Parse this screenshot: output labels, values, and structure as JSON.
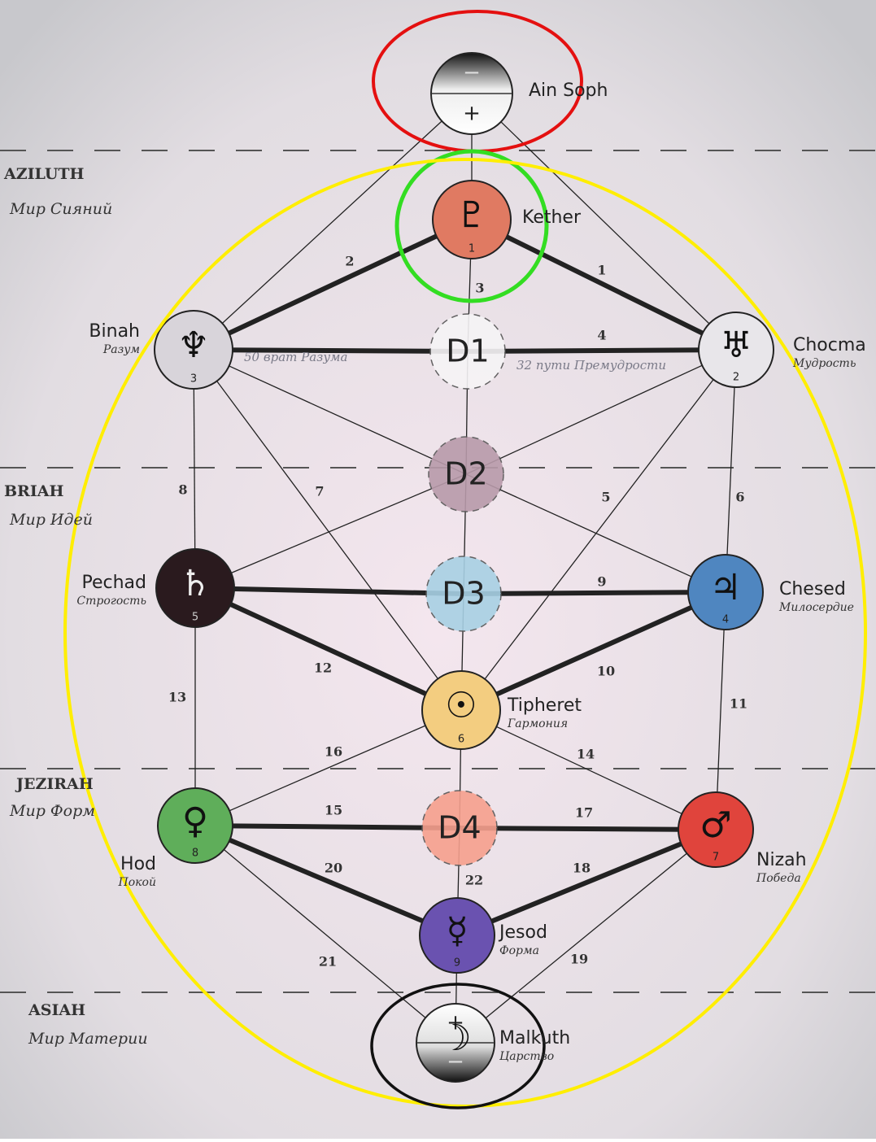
{
  "worlds": [
    {
      "name": "AZILUTH",
      "subtitle": "Мир Сияний"
    },
    {
      "name": "BRIAH",
      "subtitle": "Мир Идей"
    },
    {
      "name": "JEZIRAH",
      "subtitle": "Мир Форм"
    },
    {
      "name": "ASIAH",
      "subtitle": "Мир Материи"
    }
  ],
  "nodes": [
    {
      "name": "Ain Soph",
      "symbol_top": "−",
      "symbol_bottom": "+"
    },
    {
      "name": "Kether",
      "symbol": "♇",
      "number": 1
    },
    {
      "name": "Chocma",
      "subtitle": "Мудрость",
      "symbol": "♅",
      "number": 2
    },
    {
      "name": "Binah",
      "subtitle": "Разум",
      "symbol": "♆",
      "number": 3
    },
    {
      "name": "D1"
    },
    {
      "name": "D2"
    },
    {
      "name": "D3"
    },
    {
      "name": "Pechad",
      "subtitle": "Строгость",
      "symbol": "♄",
      "number": 5
    },
    {
      "name": "Chesed",
      "subtitle": "Милосердие",
      "symbol": "♃",
      "number": 4
    },
    {
      "name": "Tipheret",
      "subtitle": "Гармония",
      "symbol": "☉",
      "number": 6
    },
    {
      "name": "Hod",
      "subtitle": "Покой",
      "symbol": "♀",
      "number": 8
    },
    {
      "name": "D4"
    },
    {
      "name": "Nizah",
      "subtitle": "Победа",
      "symbol": "♂",
      "number": 7
    },
    {
      "name": "Jesod",
      "subtitle": "Форма",
      "symbol": "☿",
      "number": 9
    },
    {
      "name": "Malkuth",
      "subtitle": "Царство",
      "symbol": "☽",
      "symbol_top": "+",
      "symbol_bottom": "−"
    }
  ],
  "paths": [
    1,
    2,
    3,
    4,
    5,
    6,
    7,
    8,
    9,
    10,
    11,
    12,
    13,
    14,
    15,
    16,
    17,
    18,
    19,
    20,
    21,
    22
  ],
  "annotations": [
    "50 врат Разума",
    "32 пути Премудрости"
  ]
}
